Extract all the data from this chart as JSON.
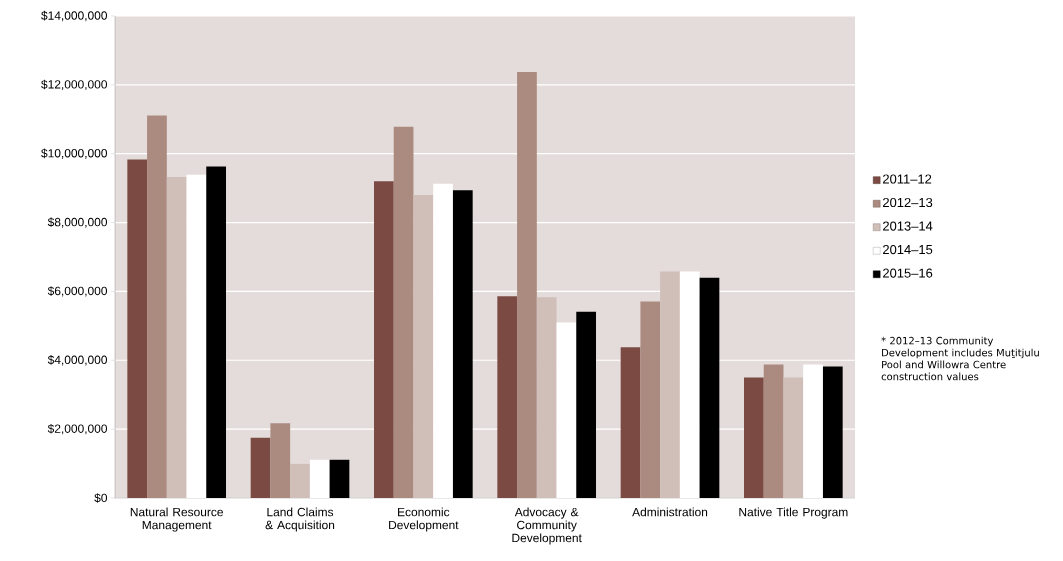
{
  "chart_data": {
    "type": "bar",
    "categories": [
      "Natural Resource Management",
      "Land Claims & Acquisition",
      "Economic Development",
      "Advocacy & Community Development",
      "Administration",
      "Native Title Program"
    ],
    "series": [
      {
        "name": "2011–12",
        "color": "#7b4b43",
        "values": [
          9830000,
          1750000,
          9200000,
          5860000,
          4380000,
          3500000
        ]
      },
      {
        "name": "2012–13",
        "color": "#ab8b80",
        "values": [
          11110000,
          2170000,
          10780000,
          12370000,
          5710000,
          3880000
        ]
      },
      {
        "name": "2013–14",
        "color": "#d0beb8",
        "values": [
          9320000,
          990000,
          8800000,
          5830000,
          6580000,
          3500000
        ]
      },
      {
        "name": "2014–15",
        "color": "#ffffff",
        "values": [
          9390000,
          1110000,
          9130000,
          5100000,
          6580000,
          3880000
        ]
      },
      {
        "name": "2015–16",
        "color": "#000000",
        "values": [
          9630000,
          1110000,
          8940000,
          5410000,
          6400000,
          3820000
        ]
      }
    ],
    "ylim": [
      0,
      14000000
    ],
    "yticks": [
      {
        "value": 0,
        "label": "$0"
      },
      {
        "value": 2000000,
        "label": "$2,000,000"
      },
      {
        "value": 4000000,
        "label": "$4,000,000"
      },
      {
        "value": 6000000,
        "label": "$6,000,000"
      },
      {
        "value": 8000000,
        "label": "$8,000,000"
      },
      {
        "value": 10000000,
        "label": "$10,000,000"
      },
      {
        "value": 12000000,
        "label": "$12,000,000"
      },
      {
        "value": 14000000,
        "label": "$14,000,000"
      }
    ],
    "grid": "y",
    "legend": "right",
    "annotations": [
      "* 2012–13 Community Development includes Muṯitjulu Pool and Willowra Centre construction values"
    ]
  }
}
